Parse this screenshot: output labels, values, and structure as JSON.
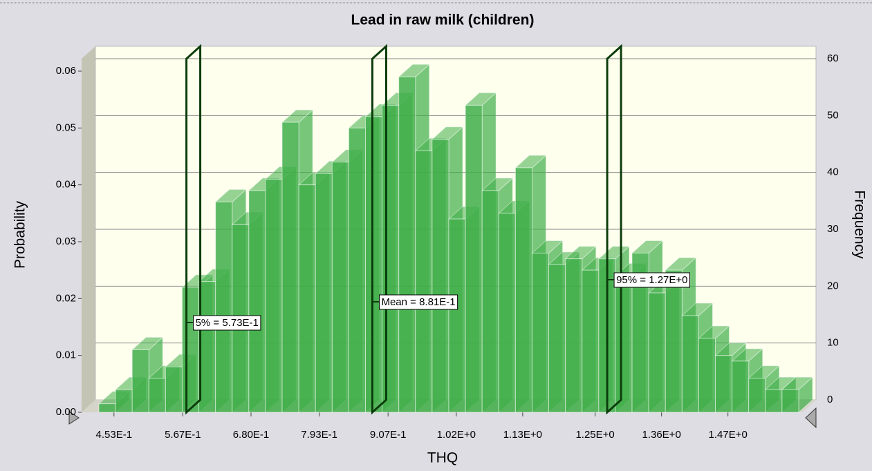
{
  "chart_data": {
    "type": "histogram",
    "title": "Lead in raw milk (children)",
    "x_label": "THQ",
    "y_label": "Probability",
    "y2_label": "Frequency",
    "color": "#3fae49",
    "bins": [
      0.428,
      0.4556,
      0.4832,
      0.5108,
      0.5384,
      0.566,
      0.5936,
      0.6212,
      0.6488,
      0.6764,
      0.704,
      0.7316,
      0.7592,
      0.7868,
      0.8144,
      0.842,
      0.8696,
      0.8972,
      0.9248,
      0.9524,
      0.98,
      1.0076,
      1.0352,
      1.0628,
      1.0904,
      1.118,
      1.1456,
      1.1732,
      1.2008,
      1.2284,
      1.256,
      1.2836,
      1.3112,
      1.3388,
      1.3664,
      1.394,
      1.4216,
      1.4492,
      1.4768,
      1.5044,
      1.532,
      1.5596,
      1.5872
    ],
    "values": [
      0.0015,
      0.004,
      0.011,
      0.006,
      0.008,
      0.022,
      0.023,
      0.037,
      0.033,
      0.039,
      0.041,
      0.051,
      0.04,
      0.042,
      0.044,
      0.05,
      0.052,
      0.054,
      0.059,
      0.046,
      0.048,
      0.034,
      0.054,
      0.039,
      0.035,
      0.043,
      0.028,
      0.026,
      0.027,
      0.025,
      0.027,
      0.024,
      0.028,
      0.021,
      0.025,
      0.017,
      0.013,
      0.01,
      0.009,
      0.006,
      0.004,
      0.004
    ],
    "xlim": [
      0.428,
      1.5872
    ],
    "xticks": [
      {
        "value": 0.453,
        "label": "4.53E-1"
      },
      {
        "value": 0.567,
        "label": "5.67E-1"
      },
      {
        "value": 0.68,
        "label": "6.80E-1"
      },
      {
        "value": 0.793,
        "label": "7.93E-1"
      },
      {
        "value": 0.907,
        "label": "9.07E-1"
      },
      {
        "value": 1.02,
        "label": "1.02E+0"
      },
      {
        "value": 1.13,
        "label": "1.13E+0"
      },
      {
        "value": 1.25,
        "label": "1.25E+0"
      },
      {
        "value": 1.36,
        "label": "1.36E+0"
      },
      {
        "value": 1.47,
        "label": "1.47E+0"
      }
    ],
    "ylim": [
      0,
      0.06
    ],
    "yticks": [
      {
        "value": 0,
        "label": "0.00"
      },
      0.01,
      0.02,
      0.03,
      0.04,
      0.05,
      0.06
    ],
    "y2lim": [
      0,
      60
    ],
    "y2ticks": [
      0,
      10,
      20,
      30,
      40,
      50,
      60
    ],
    "grid": true,
    "markers": [
      {
        "label": "5% = 5.73E-1",
        "value": 0.573
      },
      {
        "label": "Mean = 8.81E-1",
        "value": 0.881
      },
      {
        "label": "95% = 1.27E+0",
        "value": 1.27
      }
    ]
  }
}
